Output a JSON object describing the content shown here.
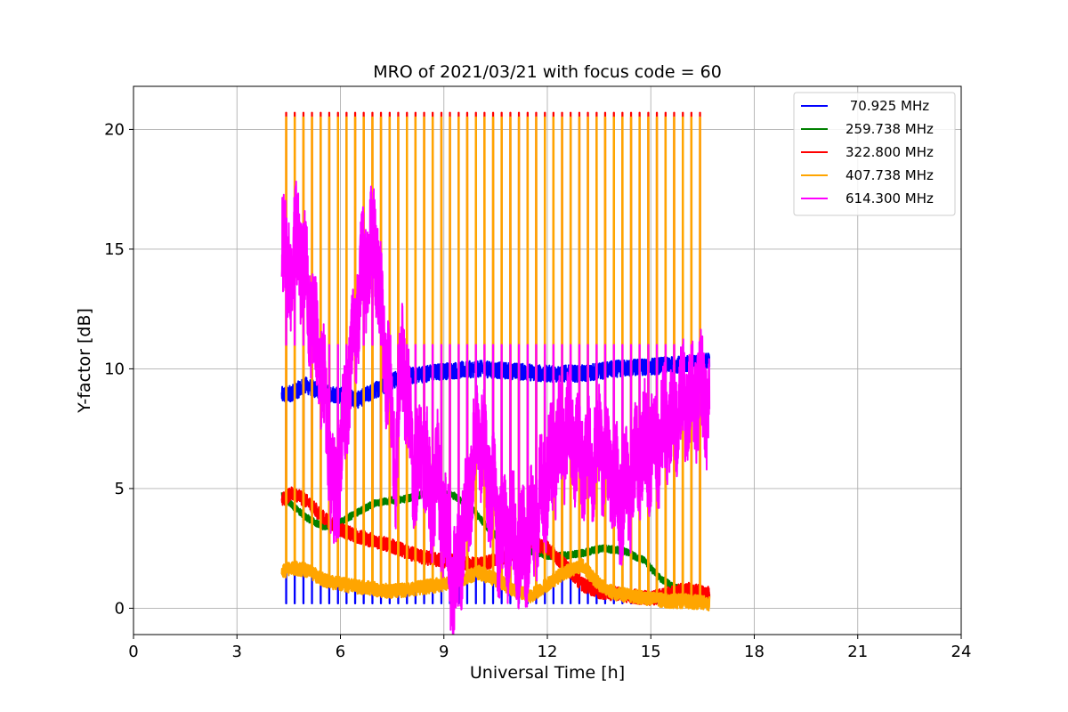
{
  "chart_data": {
    "type": "line",
    "title": "MRO of 2021/03/21 with focus code = 60",
    "xlabel": "Universal Time [h]",
    "ylabel": "Y-factor [dB]",
    "xlim": [
      0,
      24
    ],
    "ylim": [
      -1.1,
      21.8
    ],
    "x_ticks": [
      0,
      3,
      6,
      9,
      12,
      15,
      18,
      21,
      24
    ],
    "x_tick_labels": [
      "0",
      "3",
      "6",
      "9",
      "12",
      "15",
      "18",
      "21",
      "24"
    ],
    "y_ticks": [
      0,
      5,
      10,
      15,
      20
    ],
    "y_tick_labels": [
      "0",
      "5",
      "10",
      "15",
      "20"
    ],
    "grid": true,
    "legend_position": "top-right",
    "time_start_h": 4.3,
    "time_end_h": 16.7,
    "calibration_period_h": 0.25,
    "series": [
      {
        "name": " 70.925 MHz",
        "color": "#0000ff",
        "baseline_points": [
          [
            4.3,
            8.9
          ],
          [
            4.6,
            9.0
          ],
          [
            5.0,
            9.3
          ],
          [
            5.5,
            9.0
          ],
          [
            6.0,
            8.9
          ],
          [
            6.5,
            8.7
          ],
          [
            7.0,
            9.1
          ],
          [
            7.5,
            9.5
          ],
          [
            8.0,
            9.7
          ],
          [
            9.0,
            9.9
          ],
          [
            10.0,
            10.0
          ],
          [
            11.0,
            9.9
          ],
          [
            12.0,
            9.8
          ],
          [
            13.0,
            9.8
          ],
          [
            14.0,
            10.0
          ],
          [
            15.0,
            10.1
          ],
          [
            16.0,
            10.2
          ],
          [
            16.7,
            10.3
          ]
        ],
        "calibration_level": 0.2
      },
      {
        "name": "259.738 MHz",
        "color": "#008000",
        "baseline_points": [
          [
            4.3,
            4.7
          ],
          [
            4.6,
            4.3
          ],
          [
            5.0,
            3.8
          ],
          [
            5.5,
            3.4
          ],
          [
            6.0,
            3.6
          ],
          [
            6.5,
            4.0
          ],
          [
            7.0,
            4.4
          ],
          [
            7.5,
            4.5
          ],
          [
            8.0,
            4.6
          ],
          [
            8.7,
            4.9
          ],
          [
            9.3,
            4.7
          ],
          [
            9.8,
            4.2
          ],
          [
            10.3,
            3.3
          ],
          [
            10.8,
            2.7
          ],
          [
            11.5,
            2.4
          ],
          [
            12.0,
            2.2
          ],
          [
            12.5,
            2.2
          ],
          [
            13.0,
            2.3
          ],
          [
            13.6,
            2.5
          ],
          [
            14.2,
            2.4
          ],
          [
            14.8,
            2.0
          ],
          [
            15.3,
            1.2
          ],
          [
            15.8,
            0.8
          ],
          [
            16.2,
            0.6
          ],
          [
            16.7,
            0.5
          ]
        ],
        "calibration_level": null
      },
      {
        "name": "322.800 MHz",
        "color": "#ff0000",
        "baseline_points": [
          [
            4.3,
            4.5
          ],
          [
            4.6,
            4.8
          ],
          [
            5.0,
            4.5
          ],
          [
            5.5,
            3.8
          ],
          [
            6.0,
            3.3
          ],
          [
            6.5,
            3.0
          ],
          [
            7.0,
            2.8
          ],
          [
            7.5,
            2.6
          ],
          [
            8.0,
            2.3
          ],
          [
            8.5,
            2.1
          ],
          [
            9.0,
            2.0
          ],
          [
            9.5,
            1.9
          ],
          [
            10.0,
            1.8
          ],
          [
            10.5,
            2.0
          ],
          [
            11.0,
            2.3
          ],
          [
            11.5,
            2.8
          ],
          [
            12.0,
            2.5
          ],
          [
            12.5,
            1.8
          ],
          [
            13.0,
            1.0
          ],
          [
            13.5,
            0.7
          ],
          [
            14.0,
            0.6
          ],
          [
            14.5,
            0.5
          ],
          [
            15.0,
            0.4
          ],
          [
            15.5,
            0.6
          ],
          [
            16.0,
            0.8
          ],
          [
            16.7,
            0.6
          ]
        ],
        "calibration_level": 20.7
      },
      {
        "name": "407.738 MHz",
        "color": "#ffa500",
        "baseline_points": [
          [
            4.3,
            1.5
          ],
          [
            4.6,
            1.7
          ],
          [
            5.0,
            1.6
          ],
          [
            5.5,
            1.2
          ],
          [
            6.0,
            1.0
          ],
          [
            6.5,
            0.9
          ],
          [
            7.0,
            0.8
          ],
          [
            7.5,
            0.7
          ],
          [
            8.0,
            0.8
          ],
          [
            8.5,
            0.9
          ],
          [
            9.0,
            1.0
          ],
          [
            9.5,
            1.2
          ],
          [
            10.0,
            1.5
          ],
          [
            10.5,
            1.2
          ],
          [
            11.0,
            0.8
          ],
          [
            11.5,
            0.5
          ],
          [
            12.0,
            1.0
          ],
          [
            12.5,
            1.5
          ],
          [
            13.0,
            1.8
          ],
          [
            13.5,
            1.0
          ],
          [
            14.0,
            0.6
          ],
          [
            14.5,
            0.5
          ],
          [
            15.0,
            0.4
          ],
          [
            15.5,
            0.3
          ],
          [
            16.0,
            0.3
          ],
          [
            16.7,
            0.2
          ]
        ],
        "calibration_level": 20.5
      },
      {
        "name": "614.300 MHz",
        "color": "#ff00ff",
        "baseline_points": [
          [
            4.3,
            16.5
          ],
          [
            4.45,
            13.5
          ],
          [
            4.6,
            14.5
          ],
          [
            4.8,
            15.2
          ],
          [
            5.0,
            13.5
          ],
          [
            5.2,
            12.0
          ],
          [
            5.4,
            10.5
          ],
          [
            5.6,
            8.0
          ],
          [
            5.8,
            4.0
          ],
          [
            6.0,
            6.5
          ],
          [
            6.2,
            9.0
          ],
          [
            6.4,
            11.5
          ],
          [
            6.6,
            13.8
          ],
          [
            6.8,
            14.5
          ],
          [
            7.0,
            15.5
          ],
          [
            7.2,
            12.0
          ],
          [
            7.4,
            9.5
          ],
          [
            7.6,
            6.0
          ],
          [
            7.8,
            11.0
          ],
          [
            8.0,
            7.5
          ],
          [
            8.2,
            5.5
          ],
          [
            8.4,
            7.0
          ],
          [
            8.6,
            4.5
          ],
          [
            8.8,
            5.5
          ],
          [
            9.0,
            3.5
          ],
          [
            9.3,
            1.0
          ],
          [
            9.6,
            3.5
          ],
          [
            10.0,
            7.5
          ],
          [
            10.3,
            5.5
          ],
          [
            10.6,
            3.2
          ],
          [
            11.0,
            3.0
          ],
          [
            11.3,
            2.5
          ],
          [
            11.6,
            3.5
          ],
          [
            12.0,
            5.5
          ],
          [
            12.3,
            6.8
          ],
          [
            12.6,
            7.5
          ],
          [
            12.9,
            6.5
          ],
          [
            13.2,
            6.0
          ],
          [
            13.5,
            7.0
          ],
          [
            13.8,
            5.8
          ],
          [
            14.1,
            4.5
          ],
          [
            14.4,
            5.0
          ],
          [
            14.7,
            6.5
          ],
          [
            15.0,
            6.8
          ],
          [
            15.3,
            7.2
          ],
          [
            15.6,
            8.0
          ],
          [
            16.0,
            8.5
          ],
          [
            16.4,
            9.0
          ],
          [
            16.7,
            8.5
          ]
        ],
        "calibration_level": 11.0
      }
    ]
  }
}
